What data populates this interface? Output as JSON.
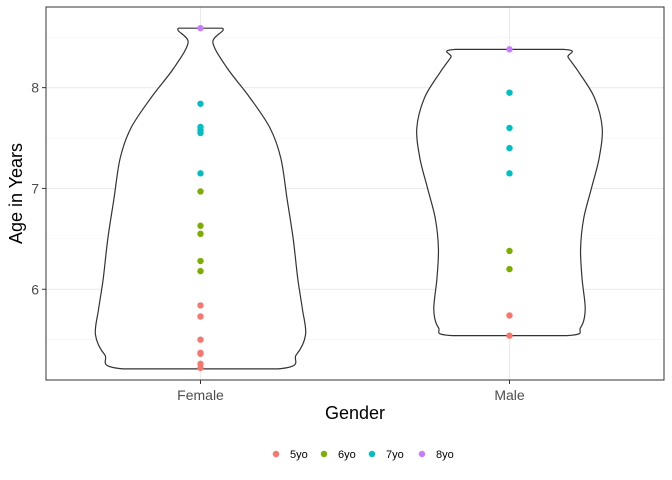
{
  "chart_data": {
    "type": "violin",
    "xlabel": "Gender",
    "ylabel": "Age in Years",
    "categories": [
      "Female",
      "Male"
    ],
    "ylim": [
      5.1,
      8.8
    ],
    "yticks": [
      6,
      7,
      8
    ],
    "yticks_labels": [
      "6",
      "7",
      "8"
    ],
    "grid": true,
    "legend_position": "bottom",
    "groups": [
      {
        "name": "5yo",
        "color": "#F8766D"
      },
      {
        "name": "6yo",
        "color": "#7CAE00"
      },
      {
        "name": "7yo",
        "color": "#00BFC4"
      },
      {
        "name": "8yo",
        "color": "#C77CFF"
      }
    ],
    "violins": [
      {
        "category": "Female",
        "outline": [
          {
            "y": 5.21,
            "hw": 0.5
          },
          {
            "y": 5.35,
            "hw": 0.62
          },
          {
            "y": 5.55,
            "hw": 0.68
          },
          {
            "y": 5.8,
            "hw": 0.66
          },
          {
            "y": 6.1,
            "hw": 0.63
          },
          {
            "y": 6.5,
            "hw": 0.6
          },
          {
            "y": 6.9,
            "hw": 0.56
          },
          {
            "y": 7.3,
            "hw": 0.52
          },
          {
            "y": 7.6,
            "hw": 0.45
          },
          {
            "y": 7.9,
            "hw": 0.32
          },
          {
            "y": 8.2,
            "hw": 0.17
          },
          {
            "y": 8.45,
            "hw": 0.08
          },
          {
            "y": 8.59,
            "hw": 0.14
          }
        ]
      },
      {
        "category": "Male",
        "outline": [
          {
            "y": 5.54,
            "hw": 0.37
          },
          {
            "y": 5.62,
            "hw": 0.46
          },
          {
            "y": 5.8,
            "hw": 0.49
          },
          {
            "y": 6.1,
            "hw": 0.47
          },
          {
            "y": 6.4,
            "hw": 0.46
          },
          {
            "y": 6.7,
            "hw": 0.48
          },
          {
            "y": 7.0,
            "hw": 0.53
          },
          {
            "y": 7.3,
            "hw": 0.58
          },
          {
            "y": 7.6,
            "hw": 0.6
          },
          {
            "y": 7.9,
            "hw": 0.55
          },
          {
            "y": 8.15,
            "hw": 0.45
          },
          {
            "y": 8.3,
            "hw": 0.38
          },
          {
            "y": 8.38,
            "hw": 0.35
          }
        ]
      }
    ],
    "points": [
      {
        "category": "Female",
        "y": 8.59,
        "group": "8yo"
      },
      {
        "category": "Female",
        "y": 7.84,
        "group": "7yo"
      },
      {
        "category": "Female",
        "y": 7.61,
        "group": "7yo"
      },
      {
        "category": "Female",
        "y": 7.58,
        "group": "7yo"
      },
      {
        "category": "Female",
        "y": 7.55,
        "group": "7yo"
      },
      {
        "category": "Female",
        "y": 7.15,
        "group": "7yo"
      },
      {
        "category": "Female",
        "y": 6.97,
        "group": "6yo"
      },
      {
        "category": "Female",
        "y": 6.63,
        "group": "6yo"
      },
      {
        "category": "Female",
        "y": 6.55,
        "group": "6yo"
      },
      {
        "category": "Female",
        "y": 6.28,
        "group": "6yo"
      },
      {
        "category": "Female",
        "y": 6.18,
        "group": "6yo"
      },
      {
        "category": "Female",
        "y": 5.84,
        "group": "5yo"
      },
      {
        "category": "Female",
        "y": 5.73,
        "group": "5yo"
      },
      {
        "category": "Female",
        "y": 5.5,
        "group": "5yo"
      },
      {
        "category": "Female",
        "y": 5.37,
        "group": "5yo"
      },
      {
        "category": "Female",
        "y": 5.36,
        "group": "5yo"
      },
      {
        "category": "Female",
        "y": 5.26,
        "group": "5yo"
      },
      {
        "category": "Female",
        "y": 5.22,
        "group": "5yo"
      },
      {
        "category": "Male",
        "y": 8.38,
        "group": "8yo"
      },
      {
        "category": "Male",
        "y": 7.95,
        "group": "7yo"
      },
      {
        "category": "Male",
        "y": 7.6,
        "group": "7yo"
      },
      {
        "category": "Male",
        "y": 7.4,
        "group": "7yo"
      },
      {
        "category": "Male",
        "y": 7.15,
        "group": "7yo"
      },
      {
        "category": "Male",
        "y": 6.38,
        "group": "6yo"
      },
      {
        "category": "Male",
        "y": 6.2,
        "group": "6yo"
      },
      {
        "category": "Male",
        "y": 5.74,
        "group": "5yo"
      },
      {
        "category": "Male",
        "y": 5.54,
        "group": "5yo"
      }
    ]
  }
}
